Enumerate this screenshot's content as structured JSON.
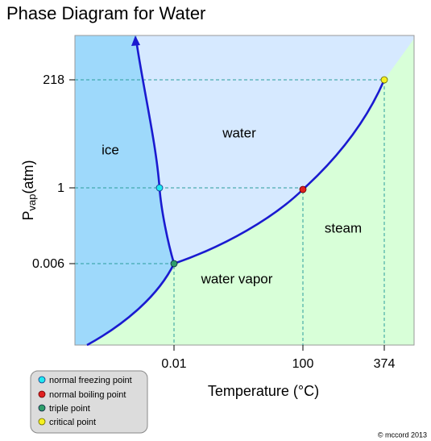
{
  "title": "Phase Diagram for Water",
  "x_axis": {
    "label": "Temperature (°C)",
    "ticks": [
      "0.01",
      "100",
      "374"
    ]
  },
  "y_axis": {
    "label": {
      "main": "P",
      "subscript": "vap",
      "rest": "(atm)"
    },
    "ticks": [
      "218",
      "1",
      "0.006"
    ]
  },
  "regions": [
    "ice",
    "water",
    "steam",
    "water vapor"
  ],
  "legend": [
    "normal freezing point",
    "normal boiling point",
    "triple point",
    "critical point"
  ],
  "credit": "© mccord 2013"
}
